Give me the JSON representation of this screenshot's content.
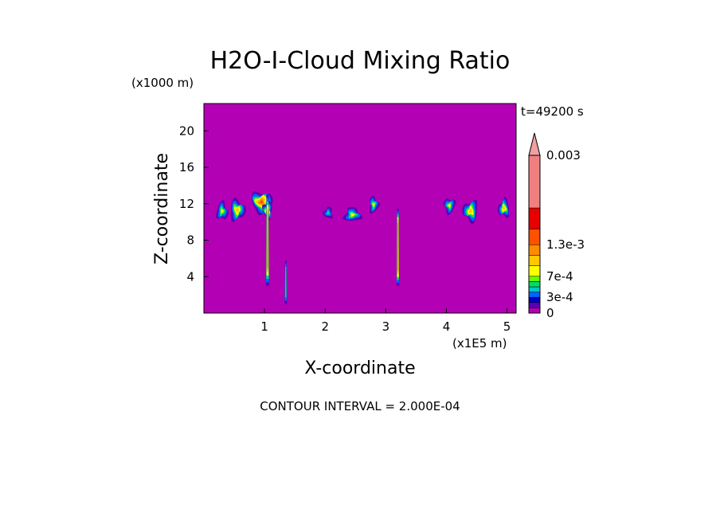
{
  "chart_data": {
    "type": "heatmap",
    "title": "H2O-I-Cloud Mixing Ratio",
    "xlabel": "X-coordinate",
    "ylabel": "Z-coordinate",
    "x_unit": "(x1E5 m)",
    "y_unit": "(x1000 m)",
    "time_label": "t=49200 s",
    "footer": "CONTOUR INTERVAL = 2.000E-04",
    "xlim": [
      0,
      5.15
    ],
    "ylim": [
      0,
      23
    ],
    "x_ticks": [
      1,
      2,
      3,
      4,
      5
    ],
    "y_ticks": [
      4,
      8,
      12,
      16,
      20
    ],
    "background_color": "#b400b4",
    "colorbar": {
      "labels": [
        {
          "text": "0.003",
          "value": 0.003
        },
        {
          "text": "1.3e-3",
          "value": 0.0013
        },
        {
          "text": "7e-4",
          "value": 0.0007
        },
        {
          "text": "3e-4",
          "value": 0.0003
        },
        {
          "text": "0",
          "value": 0
        }
      ],
      "levels": [
        {
          "value": 0.0,
          "color": "#b400b4"
        },
        {
          "value": 0.0001,
          "color": "#5a00b4"
        },
        {
          "value": 0.0002,
          "color": "#0000c8"
        },
        {
          "value": 0.0003,
          "color": "#0064ff"
        },
        {
          "value": 0.0004,
          "color": "#00c8c8"
        },
        {
          "value": 0.0005,
          "color": "#00dc64"
        },
        {
          "value": 0.0006,
          "color": "#64ff00"
        },
        {
          "value": 0.0007,
          "color": "#ffff00"
        },
        {
          "value": 0.0009,
          "color": "#ffc800"
        },
        {
          "value": 0.0011,
          "color": "#ff8c00"
        },
        {
          "value": 0.0013,
          "color": "#ff5000"
        },
        {
          "value": 0.0016,
          "color": "#e60000"
        },
        {
          "value": 0.002,
          "color": "#f08080"
        }
      ],
      "extend_color": "#f0a0a0"
    },
    "cloud_cells": [
      {
        "x": 0.3,
        "z": 11.2,
        "rx": 0.12,
        "rz": 1.3,
        "peak": 0.0006
      },
      {
        "x": 0.55,
        "z": 11.3,
        "rx": 0.16,
        "rz": 1.5,
        "peak": 0.0007
      },
      {
        "x": 0.95,
        "z": 12.2,
        "rx": 0.22,
        "rz": 1.5,
        "peak": 0.0012
      },
      {
        "x": 1.05,
        "z": 11.3,
        "rx": 0.1,
        "rz": 1.2,
        "peak": 0.001
      },
      {
        "x": 2.05,
        "z": 11.0,
        "rx": 0.1,
        "rz": 0.8,
        "peak": 0.0004
      },
      {
        "x": 2.45,
        "z": 10.8,
        "rx": 0.18,
        "rz": 1.0,
        "peak": 0.0006
      },
      {
        "x": 2.8,
        "z": 11.9,
        "rx": 0.1,
        "rz": 1.2,
        "peak": 0.0006
      },
      {
        "x": 4.05,
        "z": 11.8,
        "rx": 0.12,
        "rz": 1.1,
        "peak": 0.0006
      },
      {
        "x": 4.4,
        "z": 11.2,
        "rx": 0.16,
        "rz": 1.5,
        "peak": 0.0007
      },
      {
        "x": 4.95,
        "z": 11.5,
        "rx": 0.12,
        "rz": 1.3,
        "peak": 0.0008
      }
    ],
    "plumes": [
      {
        "x": 1.05,
        "z_bottom": 3.0,
        "z_top": 13.0,
        "width": 0.04,
        "peak": 0.0009
      },
      {
        "x": 1.35,
        "z_bottom": 1.0,
        "z_top": 5.8,
        "width": 0.025,
        "peak": 0.0004
      },
      {
        "x": 3.2,
        "z_bottom": 3.0,
        "z_top": 11.5,
        "width": 0.03,
        "peak": 0.0009
      }
    ]
  }
}
